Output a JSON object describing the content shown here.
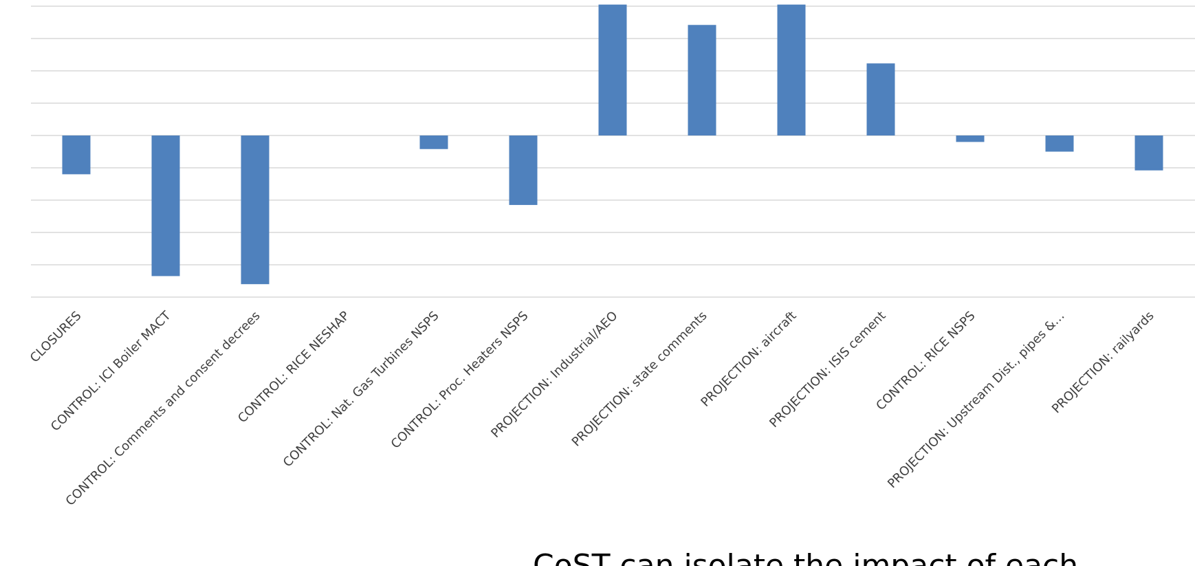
{
  "chart_data": {
    "type": "bar",
    "categories": [
      "CLOSURES",
      "CONTROL: ICI Boiler MACT",
      "CONTROL: Comments and consent decrees",
      "CONTROL: RICE NESHAP",
      "CONTROL: Nat. Gas Turbines NSPS",
      "CONTROL: Proc. Heaters NSPS",
      "PROJECTION: Industrial/AEO",
      "PROJECTION: state comments",
      "PROJECTION: aircraft",
      "PROJECTION: ISIS cement",
      "CONTROL: RICE NSPS",
      "PROJECTION: Upstream Dist., pipes &…",
      "PROJECTION: railyards"
    ],
    "values": [
      -1.2,
      -4.35,
      -4.6,
      0,
      -0.42,
      -2.15,
      4.05,
      3.42,
      4.05,
      2.23,
      -0.2,
      -0.5,
      -1.08
    ],
    "ylim": [
      -5,
      4
    ],
    "grid": true,
    "gridlines": 9,
    "caption": "CoST can isolate the impact of each",
    "colors": {
      "bar": "#4f81bd",
      "grid": "#d9d9d9"
    }
  }
}
